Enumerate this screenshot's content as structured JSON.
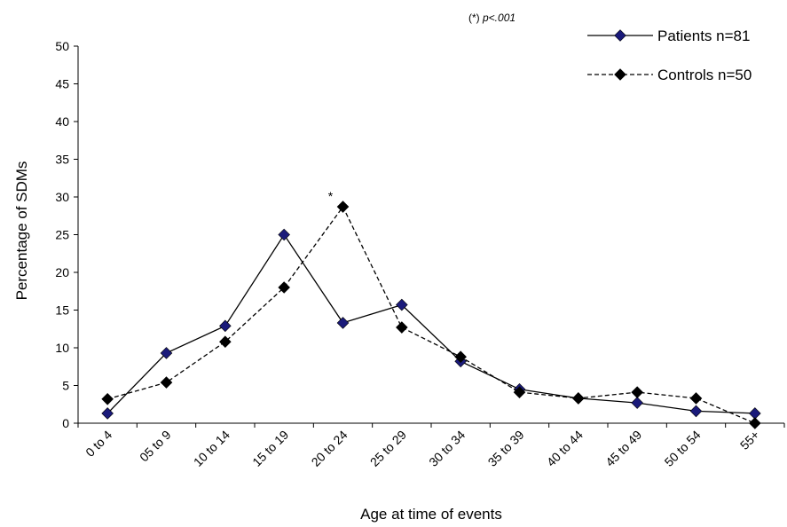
{
  "chart_data": {
    "type": "line",
    "title": "",
    "xlabel": "Age at time of events",
    "ylabel": "Percentage of SDMs",
    "ylim": [
      0,
      50
    ],
    "y_ticks": [
      "0",
      "5",
      "10",
      "15",
      "20",
      "25",
      "30",
      "35",
      "40",
      "45",
      "50"
    ],
    "categories": [
      "0 to 4",
      "05 to 9",
      "10 to 14",
      "15 to 19",
      "20 to 24",
      "25 to 29",
      "30 to 34",
      "35 to 39",
      "40 to 44",
      "45 to 49",
      "50 to 54",
      "55+"
    ],
    "series": [
      {
        "name": "Patients n=81",
        "style": "solid",
        "marker_color": "#1a1a7a",
        "line_color": "#000000",
        "values": [
          1.3,
          9.3,
          12.9,
          25.0,
          13.3,
          15.7,
          8.2,
          4.5,
          3.3,
          2.7,
          1.6,
          1.3
        ]
      },
      {
        "name": "Controls n=50",
        "style": "dashed",
        "marker_color": "#000000",
        "line_color": "#000000",
        "values": [
          3.2,
          5.4,
          10.8,
          18.0,
          28.7,
          12.7,
          8.8,
          4.1,
          3.3,
          4.1,
          3.3,
          0.0
        ]
      }
    ],
    "significance": {
      "category": "20 to 24",
      "marker": "*"
    },
    "note_prefix": "(*) ",
    "note_italic": "p<.001",
    "legend_position": "top-right",
    "grid": false
  }
}
